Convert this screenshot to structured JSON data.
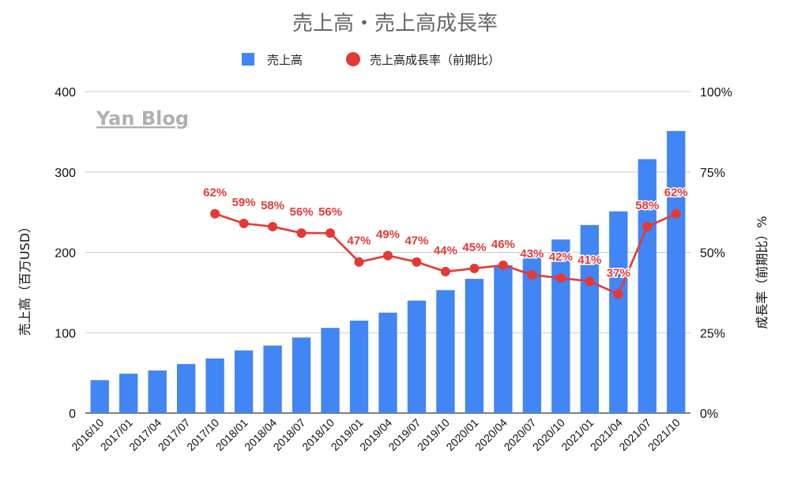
{
  "chart_data": {
    "type": "bar",
    "title": "売上高・売上高成長率",
    "watermark": "Yan Blog",
    "categories": [
      "2016/10",
      "2017/01",
      "2017/04",
      "2017/07",
      "2017/10",
      "2018/01",
      "2018/04",
      "2018/07",
      "2018/10",
      "2019/01",
      "2019/04",
      "2019/07",
      "2019/10",
      "2020/01",
      "2020/04",
      "2020/07",
      "2020/10",
      "2021/01",
      "2021/04",
      "2021/07",
      "2021/10"
    ],
    "series": [
      {
        "name": "売上高",
        "type": "bar",
        "axis": "left",
        "color": "#4285f4",
        "values": [
          41,
          49,
          53,
          61,
          68,
          78,
          84,
          94,
          106,
          115,
          125,
          140,
          153,
          167,
          184,
          197,
          216,
          234,
          251,
          316,
          351
        ]
      },
      {
        "name": "売上高成長率（前期比）",
        "type": "line",
        "axis": "right",
        "color": "#e53935",
        "values": [
          null,
          null,
          null,
          null,
          62,
          59,
          58,
          56,
          56,
          47,
          49,
          47,
          44,
          45,
          46,
          43,
          42,
          41,
          37,
          58,
          62
        ],
        "labels": [
          "",
          "",
          "",
          "",
          "62%",
          "59%",
          "58%",
          "56%",
          "56%",
          "47%",
          "49%",
          "47%",
          "44%",
          "45%",
          "46%",
          "43%",
          "42%",
          "41%",
          "37%",
          "58%",
          "62%"
        ]
      }
    ],
    "ylabel": "売上高（百万USD）",
    "ylabel_right": "成長率（前期比）%",
    "ylim": [
      0,
      400
    ],
    "ylim_right": [
      0,
      100
    ],
    "yticks": [
      "0",
      "100",
      "200",
      "300",
      "400"
    ],
    "yticks_right": [
      "0%",
      "25%",
      "50%",
      "75%",
      "100%"
    ],
    "legend_position": "top",
    "grid": true
  }
}
